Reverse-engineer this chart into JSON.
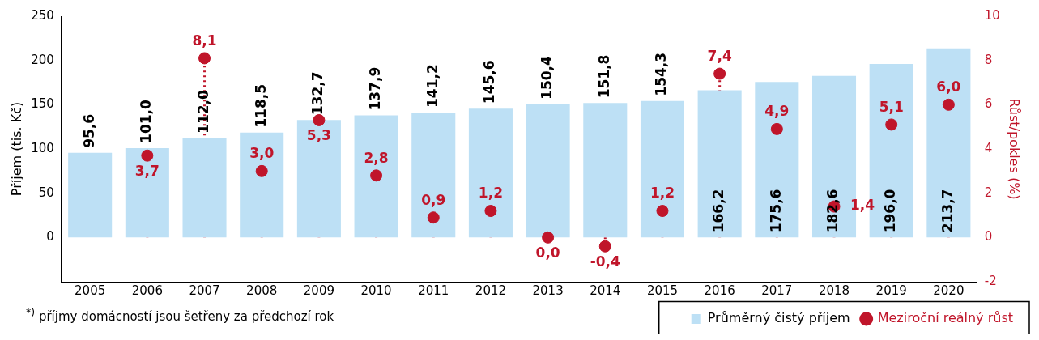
{
  "chart_data": {
    "type": "bar",
    "categories": [
      "2005",
      "2006",
      "2007",
      "2008",
      "2009",
      "2010",
      "2011",
      "2012",
      "2013",
      "2014",
      "2015",
      "2016",
      "2017",
      "2018",
      "2019",
      "2020"
    ],
    "series": [
      {
        "name": "Průměrný čistý příjem",
        "color": "#bde0f5",
        "values": [
          95.6,
          101.0,
          112.0,
          118.5,
          132.7,
          137.9,
          141.2,
          145.6,
          150.4,
          151.8,
          154.3,
          166.2,
          175.6,
          182.6,
          196.0,
          213.7
        ],
        "value_labels": [
          "95,6",
          "101,0",
          "112,0",
          "118,5",
          "132,7",
          "137,9",
          "141,2",
          "145,6",
          "150,4",
          "151,8",
          "154,3",
          "166,2",
          "175,6",
          "182,6",
          "196,0",
          "213,7"
        ]
      },
      {
        "name": "Meziroční reálný růst",
        "type": "lollipop",
        "axis": "y2",
        "color": "#c0152a",
        "values": [
          null,
          3.7,
          8.1,
          3.0,
          5.3,
          2.8,
          0.9,
          1.2,
          0.0,
          -0.4,
          1.2,
          7.4,
          4.9,
          1.4,
          5.1,
          6.0
        ],
        "value_labels": [
          null,
          "3,7",
          "8,1",
          "3,0",
          "5,3",
          "2,8",
          "0,9",
          "1,2",
          "0,0",
          "-0,4",
          "1,2",
          "7,4",
          "4,9",
          "1,4",
          "5,1",
          "6,0"
        ],
        "marker": "circle",
        "line_style": "dotted"
      }
    ],
    "ylabel": "Příjem (tis. Kč)",
    "y2label": "Růst/pokles (%)",
    "ylim": [
      -50,
      250
    ],
    "yticks": [
      0,
      50,
      100,
      150,
      200,
      250
    ],
    "y2lim": [
      -2,
      10
    ],
    "y2ticks": [
      -2,
      0,
      2,
      4,
      6,
      8,
      10
    ],
    "grid": false,
    "legend": "bottom right",
    "annotations": [
      "$^{*)}$ příjmy domácností jsou šetřeny za předchozí rok"
    ]
  }
}
